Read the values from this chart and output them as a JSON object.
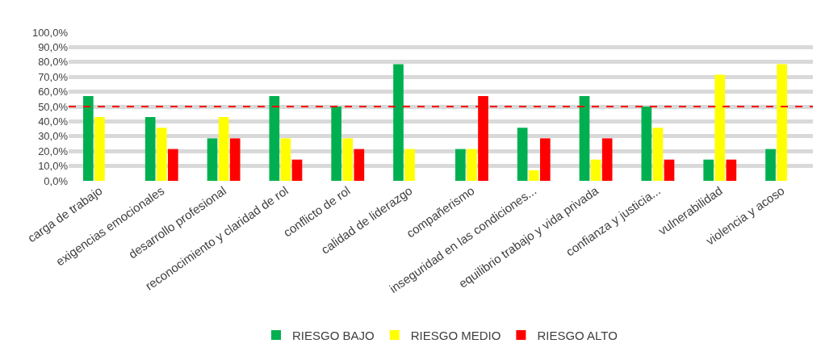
{
  "chart_data": {
    "type": "bar",
    "categories": [
      "carga de trabajo",
      "exigencias emocionales",
      "desarrollo profesional",
      "reconocimiento y claridad de rol",
      "conflicto de rol",
      "calidad de liderazgo",
      "compañerismo",
      "inseguridad en las condiciones...",
      "equilibrio trabajo y vida privada",
      "confianza y justicia...",
      "vulnerabilidad",
      "violencia y acoso"
    ],
    "series": [
      {
        "name": "RIESGO BAJO",
        "color": "#00b050",
        "values": [
          57.1,
          42.9,
          28.6,
          57.1,
          50,
          78.6,
          21.4,
          35.7,
          57.1,
          50,
          14.3,
          21.4
        ]
      },
      {
        "name": "RIESGO MEDIO",
        "color": "#ffff00",
        "values": [
          42.9,
          35.7,
          42.9,
          28.6,
          28.6,
          21.4,
          21.4,
          7.1,
          14.3,
          35.7,
          71.4,
          78.6
        ]
      },
      {
        "name": "RIESGO ALTO",
        "color": "#ff0000",
        "values": [
          null,
          21.4,
          28.6,
          14.3,
          21.4,
          null,
          57.1,
          28.6,
          28.6,
          14.3,
          14.3,
          null
        ]
      }
    ],
    "ylim": [
      0,
      100
    ],
    "yticks": [
      {
        "value": 0,
        "label": "0,0%"
      },
      {
        "value": 10,
        "label": "10,0%"
      },
      {
        "value": 20,
        "label": "20,0%"
      },
      {
        "value": 30,
        "label": "30,0%"
      },
      {
        "value": 40,
        "label": "40,0%"
      },
      {
        "value": 50,
        "label": "50,0%"
      },
      {
        "value": 60,
        "label": "60,0%"
      },
      {
        "value": 70,
        "label": "70,0%"
      },
      {
        "value": 80,
        "label": "80,0%"
      },
      {
        "value": 90,
        "label": "90,0%"
      },
      {
        "value": 100,
        "label": "100,0%"
      }
    ],
    "grid": "y",
    "legend": "bottom",
    "ref_lines": [
      {
        "axis": "y",
        "value": 50,
        "color": "#ff0000",
        "line_style": "dashed"
      }
    ]
  }
}
